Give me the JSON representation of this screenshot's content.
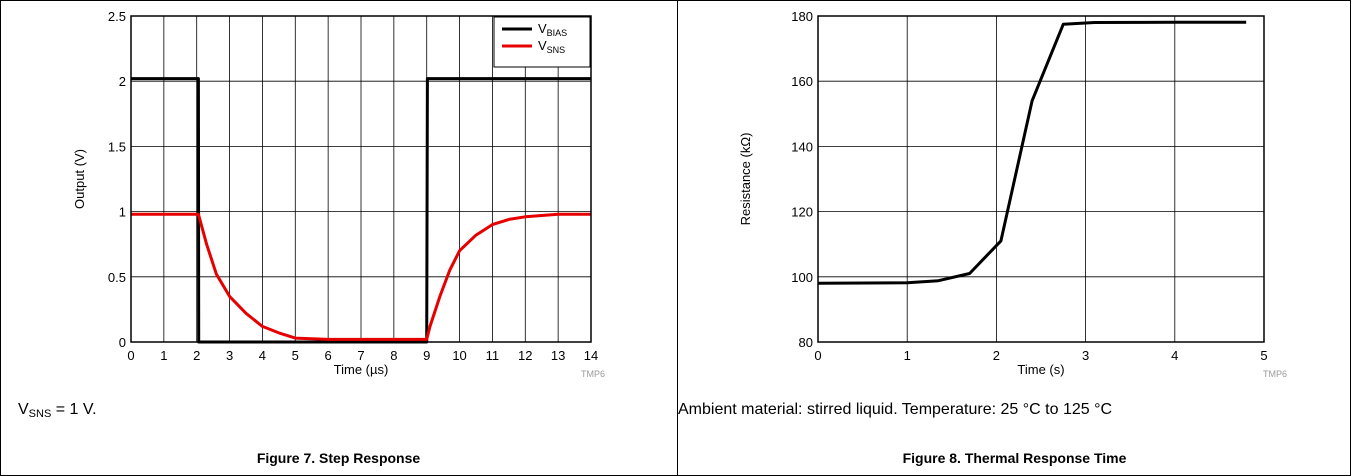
{
  "left": {
    "note_main": "V",
    "note_sub": "SNS",
    "note_rest": " = 1 V.",
    "caption": "Figure 7. Step Response",
    "chart_data": {
      "type": "line",
      "xlabel": "Time (µs)",
      "ylabel": "Output (V)",
      "xlim": [
        0,
        14
      ],
      "ylim": [
        0,
        2.5
      ],
      "xticks": [
        "0",
        "1",
        "2",
        "3",
        "4",
        "5",
        "6",
        "7",
        "8",
        "9",
        "10",
        "11",
        "12",
        "13",
        "14"
      ],
      "yticks": [
        "0",
        "0.5",
        "1",
        "1.5",
        "2",
        "2.5"
      ],
      "grid": true,
      "legend_position": "top-right",
      "watermark": "TMP6",
      "series": [
        {
          "name": "VBIAS",
          "name_main": "V",
          "name_sub": "BIAS",
          "color": "#000000",
          "x": [
            0,
            2.05,
            2.06,
            9.0,
            9.02,
            14
          ],
          "y": [
            2.02,
            2.02,
            0.0,
            0.0,
            2.02,
            2.02
          ]
        },
        {
          "name": "VSNS",
          "name_main": "V",
          "name_sub": "SNS",
          "color": "#e60000",
          "x": [
            0,
            2.05,
            2.3,
            2.6,
            3.0,
            3.5,
            4.0,
            4.5,
            5.0,
            6.0,
            8.0,
            9.0,
            9.1,
            9.4,
            9.7,
            10.0,
            10.5,
            11.0,
            11.5,
            12.0,
            13.0,
            14.0
          ],
          "y": [
            0.98,
            0.98,
            0.75,
            0.52,
            0.35,
            0.22,
            0.12,
            0.07,
            0.03,
            0.02,
            0.02,
            0.02,
            0.12,
            0.35,
            0.55,
            0.7,
            0.82,
            0.9,
            0.94,
            0.96,
            0.98,
            0.98
          ]
        }
      ]
    }
  },
  "right": {
    "note": "Ambient material: stirred liquid. Temperature: 25 °C to 125 °C",
    "caption": "Figure 8. Thermal Response Time",
    "chart_data": {
      "type": "line",
      "xlabel": "Time (s)",
      "ylabel": "Resistance (kΩ)",
      "xlim": [
        0,
        5
      ],
      "ylim": [
        80,
        180
      ],
      "xticks": [
        "0",
        "1",
        "2",
        "3",
        "4",
        "5"
      ],
      "yticks": [
        "80",
        "100",
        "120",
        "140",
        "160",
        "180"
      ],
      "grid": true,
      "watermark": "TMP6",
      "series": [
        {
          "color": "#000000",
          "x": [
            0,
            1.0,
            1.35,
            1.7,
            2.05,
            2.4,
            2.75,
            3.1,
            4.0,
            4.8
          ],
          "y": [
            98,
            98.2,
            98.8,
            101,
            111,
            154,
            177.5,
            178,
            178.1,
            178.1
          ]
        }
      ]
    }
  }
}
